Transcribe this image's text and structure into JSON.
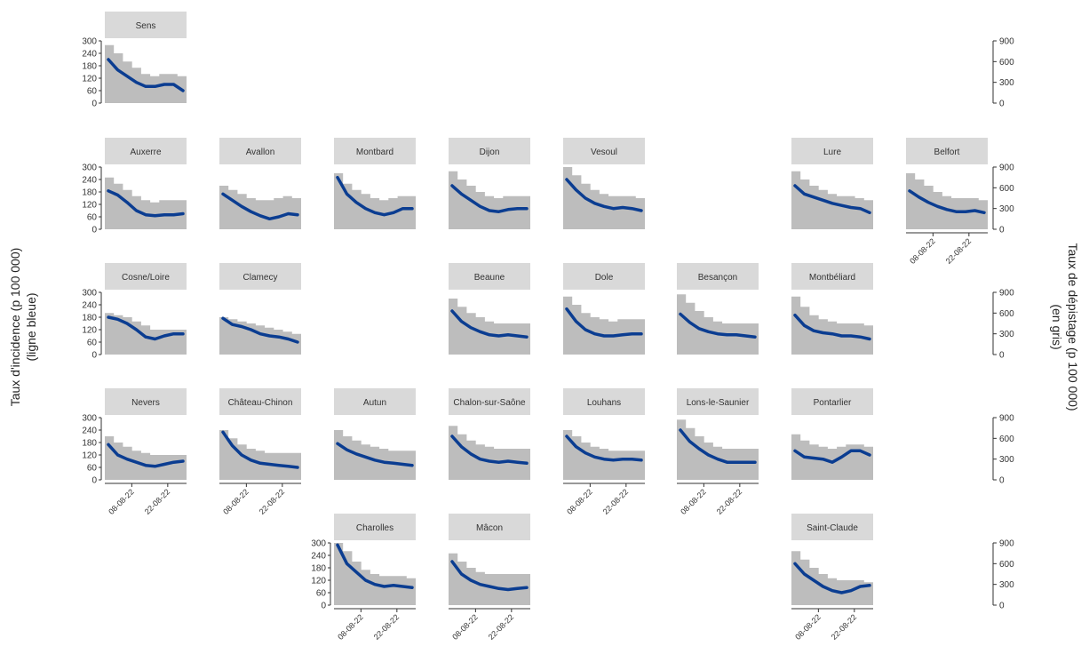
{
  "chart_data": {
    "type": "area",
    "ylabel_left": [
      "Taux d'incidence (p 100 000)",
      "(ligne bleue)"
    ],
    "ylabel_right": [
      "Taux de dépistage (p 100 000)",
      "(en gris)"
    ],
    "y_left": {
      "ylim": [
        0,
        300
      ],
      "ticks": [
        "0",
        "60",
        "120",
        "180",
        "240",
        "300"
      ]
    },
    "y_right": {
      "ylim": [
        0,
        900
      ],
      "ticks": [
        "0",
        "300",
        "600",
        "900"
      ]
    },
    "x_ticks": [
      "08-08-22",
      "22-08-22"
    ],
    "series_colors": {
      "incidence": "#0b3d91",
      "screening": "#bdbdbd",
      "strip": "#d9d9d9"
    },
    "panels": [
      {
        "name": "Sens",
        "incidence": [
          210,
          160,
          130,
          100,
          80,
          80,
          90,
          90,
          60
        ],
        "screening": [
          280,
          240,
          200,
          170,
          140,
          130,
          140,
          140,
          130
        ]
      },
      {
        "name": "Auxerre",
        "incidence": [
          185,
          165,
          130,
          90,
          70,
          65,
          70,
          70,
          75
        ],
        "screening": [
          250,
          220,
          190,
          160,
          140,
          130,
          140,
          140,
          140
        ]
      },
      {
        "name": "Avallon",
        "incidence": [
          170,
          140,
          110,
          85,
          65,
          50,
          60,
          75,
          70
        ],
        "screening": [
          210,
          190,
          170,
          150,
          140,
          140,
          150,
          160,
          150
        ]
      },
      {
        "name": "Montbard",
        "incidence": [
          250,
          170,
          130,
          100,
          80,
          70,
          80,
          100,
          100
        ],
        "screening": [
          270,
          220,
          190,
          170,
          150,
          140,
          150,
          160,
          160
        ]
      },
      {
        "name": "Dijon",
        "incidence": [
          210,
          170,
          140,
          110,
          90,
          85,
          95,
          100,
          100
        ],
        "screening": [
          280,
          240,
          210,
          180,
          160,
          150,
          160,
          160,
          160
        ]
      },
      {
        "name": "Vesoul",
        "incidence": [
          240,
          190,
          150,
          125,
          110,
          100,
          105,
          100,
          90
        ],
        "screening": [
          300,
          260,
          220,
          190,
          170,
          160,
          160,
          160,
          150
        ]
      },
      {
        "name": "Lure",
        "incidence": [
          210,
          170,
          155,
          140,
          125,
          115,
          105,
          100,
          80
        ],
        "screening": [
          280,
          240,
          210,
          190,
          170,
          160,
          160,
          150,
          140
        ]
      },
      {
        "name": "Belfort",
        "incidence": [
          185,
          155,
          130,
          110,
          95,
          85,
          85,
          90,
          80
        ],
        "screening": [
          270,
          240,
          210,
          180,
          160,
          150,
          150,
          150,
          140
        ]
      },
      {
        "name": "Cosne/Loire",
        "incidence": [
          180,
          170,
          150,
          120,
          85,
          75,
          90,
          100,
          100
        ],
        "screening": [
          200,
          190,
          180,
          160,
          140,
          120,
          120,
          120,
          120
        ]
      },
      {
        "name": "Clamecy",
        "incidence": [
          175,
          145,
          135,
          120,
          100,
          90,
          85,
          75,
          60
        ],
        "screening": [
          180,
          170,
          160,
          150,
          140,
          130,
          120,
          110,
          100
        ]
      },
      {
        "name": "Beaune",
        "incidence": [
          210,
          160,
          130,
          110,
          95,
          90,
          95,
          90,
          85
        ],
        "screening": [
          270,
          230,
          200,
          180,
          160,
          150,
          150,
          150,
          150
        ]
      },
      {
        "name": "Dole",
        "incidence": [
          220,
          160,
          120,
          100,
          90,
          90,
          95,
          100,
          100
        ],
        "screening": [
          280,
          240,
          200,
          180,
          170,
          160,
          170,
          170,
          170
        ]
      },
      {
        "name": "Besançon",
        "incidence": [
          195,
          155,
          125,
          110,
          100,
          95,
          95,
          90,
          85
        ],
        "screening": [
          290,
          250,
          210,
          180,
          160,
          150,
          150,
          150,
          150
        ]
      },
      {
        "name": "Montbéliard",
        "incidence": [
          190,
          140,
          115,
          105,
          100,
          90,
          90,
          85,
          75
        ],
        "screening": [
          280,
          230,
          190,
          170,
          160,
          150,
          150,
          150,
          140
        ]
      },
      {
        "name": "Nevers",
        "incidence": [
          170,
          120,
          100,
          85,
          70,
          65,
          75,
          85,
          90
        ],
        "screening": [
          210,
          180,
          160,
          140,
          130,
          120,
          120,
          120,
          120
        ]
      },
      {
        "name": "Château-Chinon",
        "incidence": [
          230,
          165,
          120,
          95,
          80,
          75,
          70,
          65,
          60
        ],
        "screening": [
          240,
          200,
          170,
          150,
          140,
          130,
          130,
          130,
          130
        ]
      },
      {
        "name": "Autun",
        "incidence": [
          175,
          145,
          125,
          110,
          95,
          85,
          80,
          75,
          70
        ],
        "screening": [
          240,
          210,
          190,
          170,
          160,
          150,
          140,
          140,
          140
        ]
      },
      {
        "name": "Chalon-sur-Saône",
        "incidence": [
          210,
          160,
          125,
          100,
          90,
          85,
          90,
          85,
          80
        ],
        "screening": [
          260,
          220,
          190,
          170,
          160,
          150,
          150,
          150,
          150
        ]
      },
      {
        "name": "Louhans",
        "incidence": [
          210,
          160,
          130,
          110,
          100,
          95,
          100,
          100,
          95
        ],
        "screening": [
          240,
          210,
          180,
          160,
          150,
          140,
          140,
          140,
          140
        ]
      },
      {
        "name": "Lons-le-Saunier",
        "incidence": [
          240,
          185,
          150,
          120,
          100,
          85,
          85,
          85,
          85
        ],
        "screening": [
          290,
          250,
          210,
          180,
          160,
          150,
          150,
          150,
          150
        ]
      },
      {
        "name": "Pontarlier",
        "incidence": [
          140,
          110,
          105,
          100,
          85,
          110,
          140,
          140,
          120
        ],
        "screening": [
          220,
          190,
          170,
          160,
          150,
          160,
          170,
          170,
          160
        ]
      },
      {
        "name": "Charolles",
        "incidence": [
          290,
          200,
          160,
          120,
          100,
          90,
          95,
          90,
          85
        ],
        "screening": [
          300,
          260,
          210,
          170,
          150,
          140,
          140,
          140,
          130
        ]
      },
      {
        "name": "Mâcon",
        "incidence": [
          210,
          150,
          120,
          100,
          90,
          80,
          75,
          80,
          85
        ],
        "screening": [
          250,
          210,
          180,
          160,
          150,
          150,
          150,
          150,
          150
        ]
      },
      {
        "name": "Saint-Claude",
        "incidence": [
          200,
          150,
          120,
          90,
          70,
          60,
          70,
          90,
          95
        ],
        "screening": [
          260,
          220,
          180,
          150,
          130,
          120,
          120,
          120,
          110
        ]
      }
    ]
  }
}
